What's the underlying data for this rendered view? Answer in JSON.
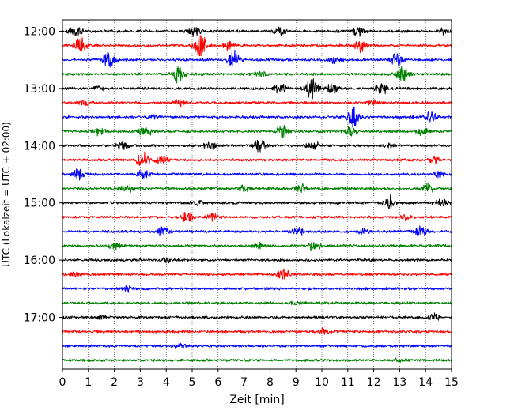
{
  "chart_data": {
    "type": "line",
    "title": "",
    "xlabel": "Zeit  [min]",
    "ylabel": "UTC (Lokalzeit = UTC + 02:00)",
    "xlim": [
      0,
      15
    ],
    "x_ticks": [
      "0",
      "1",
      "2",
      "3",
      "4",
      "5",
      "6",
      "7",
      "8",
      "9",
      "10",
      "11",
      "12",
      "13",
      "14",
      "15"
    ],
    "y_ticks": [
      "12:00",
      "13:00",
      "14:00",
      "15:00",
      "16:00",
      "17:00"
    ],
    "grid": "vertical dotted",
    "trace_colors": [
      "#000000",
      "#ff0000",
      "#0000ff",
      "#008000"
    ],
    "series": [
      {
        "start": "12:00",
        "color": "#000000",
        "bursts": [
          [
            0.5,
            0.6
          ],
          [
            5.1,
            0.5
          ],
          [
            8.4,
            0.4
          ],
          [
            11.4,
            0.5
          ],
          [
            14.7,
            0.3
          ]
        ]
      },
      {
        "start": "12:15",
        "color": "#ff0000",
        "bursts": [
          [
            0.7,
            1.0
          ],
          [
            5.3,
            1.4
          ],
          [
            11.5,
            0.7
          ],
          [
            6.4,
            0.5
          ]
        ]
      },
      {
        "start": "12:30",
        "color": "#0000ff",
        "bursts": [
          [
            1.8,
            1.0
          ],
          [
            6.6,
            1.1
          ],
          [
            12.9,
            0.8
          ],
          [
            10.5,
            0.4
          ]
        ]
      },
      {
        "start": "12:45",
        "color": "#008000",
        "bursts": [
          [
            4.5,
            1.1
          ],
          [
            13.1,
            0.9
          ],
          [
            7.6,
            0.3
          ]
        ]
      },
      {
        "start": "13:00",
        "color": "#000000",
        "bursts": [
          [
            9.6,
            1.3
          ],
          [
            8.4,
            0.6
          ],
          [
            12.3,
            0.7
          ],
          [
            10.4,
            0.5
          ],
          [
            1.4,
            0.3
          ]
        ]
      },
      {
        "start": "13:15",
        "color": "#ff0000",
        "bursts": [
          [
            4.5,
            0.4
          ],
          [
            0.8,
            0.3
          ],
          [
            12.0,
            0.3
          ]
        ]
      },
      {
        "start": "13:30",
        "color": "#0000ff",
        "bursts": [
          [
            11.2,
            1.4
          ],
          [
            14.2,
            0.6
          ],
          [
            3.5,
            0.3
          ]
        ]
      },
      {
        "start": "13:45",
        "color": "#008000",
        "bursts": [
          [
            3.2,
            0.7
          ],
          [
            8.5,
            0.7
          ],
          [
            1.4,
            0.5
          ],
          [
            11.1,
            0.5
          ],
          [
            13.9,
            0.4
          ]
        ]
      },
      {
        "start": "14:00",
        "color": "#000000",
        "bursts": [
          [
            7.6,
            0.6
          ],
          [
            9.7,
            0.5
          ],
          [
            2.3,
            0.4
          ],
          [
            5.7,
            0.4
          ],
          [
            12.6,
            0.3
          ]
        ]
      },
      {
        "start": "14:15",
        "color": "#ff0000",
        "bursts": [
          [
            3.1,
            1.0
          ],
          [
            14.4,
            0.4
          ],
          [
            3.8,
            0.4
          ]
        ]
      },
      {
        "start": "14:30",
        "color": "#0000ff",
        "bursts": [
          [
            0.6,
            0.6
          ],
          [
            3.1,
            0.5
          ],
          [
            14.5,
            0.3
          ]
        ]
      },
      {
        "start": "14:45",
        "color": "#008000",
        "bursts": [
          [
            2.5,
            0.5
          ],
          [
            7.0,
            0.4
          ],
          [
            9.2,
            0.5
          ],
          [
            14.1,
            0.5
          ]
        ]
      },
      {
        "start": "15:00",
        "color": "#000000",
        "bursts": [
          [
            12.6,
            0.7
          ],
          [
            14.6,
            0.4
          ],
          [
            5.2,
            0.3
          ]
        ]
      },
      {
        "start": "15:15",
        "color": "#ff0000",
        "bursts": [
          [
            4.8,
            0.5
          ],
          [
            5.8,
            0.4
          ],
          [
            13.3,
            0.3
          ]
        ]
      },
      {
        "start": "15:30",
        "color": "#0000ff",
        "bursts": [
          [
            3.9,
            0.5
          ],
          [
            9.1,
            0.4
          ],
          [
            13.8,
            0.7
          ],
          [
            11.6,
            0.3
          ]
        ]
      },
      {
        "start": "15:45",
        "color": "#008000",
        "bursts": [
          [
            2.0,
            0.4
          ],
          [
            9.7,
            0.6
          ],
          [
            7.6,
            0.3
          ]
        ]
      },
      {
        "start": "16:00",
        "color": "#000000",
        "bursts": [
          [
            4.0,
            0.2
          ]
        ]
      },
      {
        "start": "16:15",
        "color": "#ff0000",
        "bursts": [
          [
            8.5,
            0.6
          ],
          [
            0.5,
            0.2
          ]
        ]
      },
      {
        "start": "16:30",
        "color": "#0000ff",
        "bursts": [
          [
            2.5,
            0.3
          ]
        ]
      },
      {
        "start": "16:45",
        "color": "#008000",
        "bursts": [
          [
            9.0,
            0.2
          ]
        ]
      },
      {
        "start": "17:00",
        "color": "#000000",
        "bursts": [
          [
            14.3,
            0.4
          ],
          [
            1.5,
            0.2
          ]
        ]
      },
      {
        "start": "17:15",
        "color": "#ff0000",
        "bursts": [
          [
            10.0,
            0.3
          ]
        ]
      },
      {
        "start": "17:30",
        "color": "#0000ff",
        "bursts": [
          [
            4.5,
            0.2
          ]
        ]
      },
      {
        "start": "17:45",
        "color": "#008000",
        "bursts": [
          [
            13.0,
            0.2
          ]
        ]
      }
    ]
  }
}
